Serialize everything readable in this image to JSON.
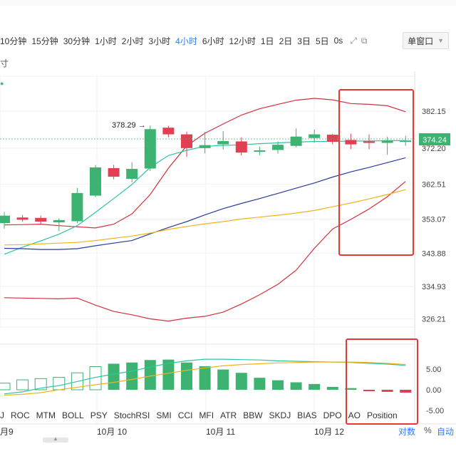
{
  "toolbar": {
    "timeframes": [
      "10分钟",
      "15分钟",
      "30分钟",
      "1小时",
      "2小时",
      "3小时",
      "4小时",
      "6小时",
      "12小时",
      "1日",
      "2日",
      "3日",
      "5日",
      "0s"
    ],
    "active_timeframe": "4小时",
    "window_mode": "单窗口"
  },
  "main_panel": {
    "left_label": "寸",
    "price_axis": [
      "382.15",
      "372.20",
      "362.51",
      "353.07",
      "343.88",
      "334.93",
      "326.21"
    ],
    "current_price": "374.24",
    "current_price_color": "#3cb371",
    "high_annotation": "378.29 →"
  },
  "oscillator_panel": {
    "axis": [
      "5.00",
      "0.00",
      "-5.00"
    ]
  },
  "indicators": [
    "J",
    "ROC",
    "MTM",
    "BOLL",
    "PSY",
    "StochRSI",
    "SMI",
    "CCI",
    "MFI",
    "ATR",
    "BBW",
    "SKDJ",
    "BIAS",
    "DPO",
    "AO",
    "Position"
  ],
  "x_axis": {
    "dates": [
      "月9",
      "10月 10",
      "10月 11",
      "10月 12"
    ],
    "scale_log": "对数",
    "scale_pct": "%",
    "scale_auto": "自动"
  },
  "colors": {
    "up": "#3cb371",
    "down": "#e04052",
    "boll_band": "#d0323c",
    "ma_fast": "#2ec4a0",
    "ma_mid": "#2a3c9c",
    "ma_slow": "#f2b21e",
    "highlight": "#e53935"
  },
  "chart_data": [
    {
      "type": "candlestick",
      "y_axis_ticks": [
        382.15,
        372.2,
        362.51,
        353.07,
        343.88,
        334.93,
        326.21
      ],
      "current_price": 374.24,
      "annotated_high": 378.29,
      "candles": [
        {
          "o": 352,
          "h": 355,
          "l": 350.5,
          "c": 354
        },
        {
          "o": 353.5,
          "h": 354.2,
          "l": 352.4,
          "c": 352.9
        },
        {
          "o": 353.4,
          "h": 354.0,
          "l": 351.6,
          "c": 352.4
        },
        {
          "o": 352.2,
          "h": 353.3,
          "l": 349.9,
          "c": 352.8
        },
        {
          "o": 352.5,
          "h": 361.5,
          "l": 352.0,
          "c": 360.1
        },
        {
          "o": 359.4,
          "h": 367.6,
          "l": 359.0,
          "c": 367.0
        },
        {
          "o": 366.8,
          "h": 367.7,
          "l": 363.8,
          "c": 364.5
        },
        {
          "o": 363.9,
          "h": 368.4,
          "l": 363.0,
          "c": 366.6
        },
        {
          "o": 366.7,
          "h": 378.29,
          "l": 366.0,
          "c": 377.3
        },
        {
          "o": 377.7,
          "h": 378.2,
          "l": 375.1,
          "c": 375.9
        },
        {
          "o": 375.9,
          "h": 376.6,
          "l": 369.8,
          "c": 372.2
        },
        {
          "o": 372.2,
          "h": 376.6,
          "l": 370.8,
          "c": 373.0
        },
        {
          "o": 373.2,
          "h": 376.8,
          "l": 371.8,
          "c": 374.1
        },
        {
          "o": 374.0,
          "h": 375.1,
          "l": 370.2,
          "c": 371.0
        },
        {
          "o": 371.6,
          "h": 372.6,
          "l": 370.3,
          "c": 371.6
        },
        {
          "o": 371.7,
          "h": 374.0,
          "l": 370.7,
          "c": 373.1
        },
        {
          "o": 372.8,
          "h": 377.5,
          "l": 372.4,
          "c": 375.3
        },
        {
          "o": 374.9,
          "h": 377.2,
          "l": 373.6,
          "c": 375.9
        },
        {
          "o": 375.8,
          "h": 376.0,
          "l": 373.2,
          "c": 373.9
        },
        {
          "o": 374.4,
          "h": 376.1,
          "l": 371.9,
          "c": 373.2
        },
        {
          "o": 374.0,
          "h": 375.9,
          "l": 371.9,
          "c": 373.6
        },
        {
          "o": 373.6,
          "h": 375.3,
          "l": 370.4,
          "c": 374.3
        },
        {
          "o": 374.0,
          "h": 375.5,
          "l": 372.8,
          "c": 374.24
        }
      ],
      "lines": [
        {
          "role": "boll_upper",
          "values": [
            351.5,
            351.6,
            351.7,
            351.3,
            351.0,
            350.7,
            351.7,
            354.5,
            359.7,
            366.8,
            372.8,
            376.2,
            378.7,
            381.1,
            382.8,
            384.0,
            385.1,
            385.6,
            385.2,
            384.2,
            384.0,
            383.6,
            382.0
          ]
        },
        {
          "role": "boll_lower",
          "values": [
            331.9,
            331.8,
            331.7,
            331.6,
            331.8,
            329.9,
            328.2,
            327.3,
            326.2,
            325.6,
            326.4,
            326.9,
            328.0,
            330.2,
            332.7,
            335.5,
            339.3,
            345.2,
            350.4,
            353.0,
            355.8,
            359.1,
            363.2
          ]
        },
        {
          "role": "ma_fast",
          "values": [
            343.6,
            345.5,
            347.2,
            349.0,
            351.3,
            354.9,
            358.6,
            362.4,
            367.0,
            370.2,
            371.6,
            372.7,
            372.9,
            373.1,
            373.4,
            373.6,
            373.8,
            374.0,
            374.0,
            374.1,
            374.1,
            374.2,
            374.2
          ]
        },
        {
          "role": "ma_mid",
          "values": [
            345.2,
            345.1,
            344.9,
            344.9,
            345.1,
            345.9,
            346.6,
            347.3,
            349.1,
            350.8,
            352.4,
            354.2,
            355.9,
            357.3,
            358.6,
            360.0,
            361.4,
            362.8,
            364.4,
            365.8,
            367.0,
            368.3,
            369.6
          ]
        },
        {
          "role": "ma_slow",
          "values": [
            346.1,
            346.2,
            346.4,
            346.6,
            346.8,
            347.3,
            347.9,
            348.5,
            349.3,
            350.3,
            351.1,
            351.8,
            352.4,
            353.1,
            353.6,
            354.1,
            354.7,
            355.4,
            356.4,
            357.4,
            358.5,
            359.7,
            361.0
          ]
        }
      ]
    },
    {
      "type": "bar",
      "y_axis_ticks": [
        5.0,
        0.0,
        -5.0
      ],
      "values": [
        1.6,
        2.4,
        2.7,
        3.0,
        4.1,
        5.6,
        6.3,
        6.6,
        7.2,
        7.3,
        6.6,
        5.7,
        4.9,
        4.1,
        2.9,
        2.3,
        1.8,
        1.4,
        0.7,
        0.4,
        -0.3,
        -0.5,
        -0.7
      ],
      "lines": [
        {
          "role": "ao_fast",
          "values": [
            -1.0,
            -0.5,
            0.4,
            1.0,
            2.0,
            3.0,
            3.8,
            4.5,
            5.5,
            6.4,
            7.0,
            7.4,
            7.4,
            7.3,
            7.2,
            7.0,
            6.9,
            6.8,
            6.7,
            6.6,
            6.4,
            6.2,
            5.9
          ]
        },
        {
          "role": "ao_slow",
          "values": [
            -1.3,
            -1.1,
            -0.7,
            0.0,
            0.6,
            1.2,
            1.8,
            2.5,
            3.3,
            4.0,
            4.7,
            5.3,
            5.8,
            6.1,
            6.3,
            6.5,
            6.6,
            6.7,
            6.7,
            6.7,
            6.6,
            6.4,
            6.1
          ]
        }
      ]
    }
  ]
}
